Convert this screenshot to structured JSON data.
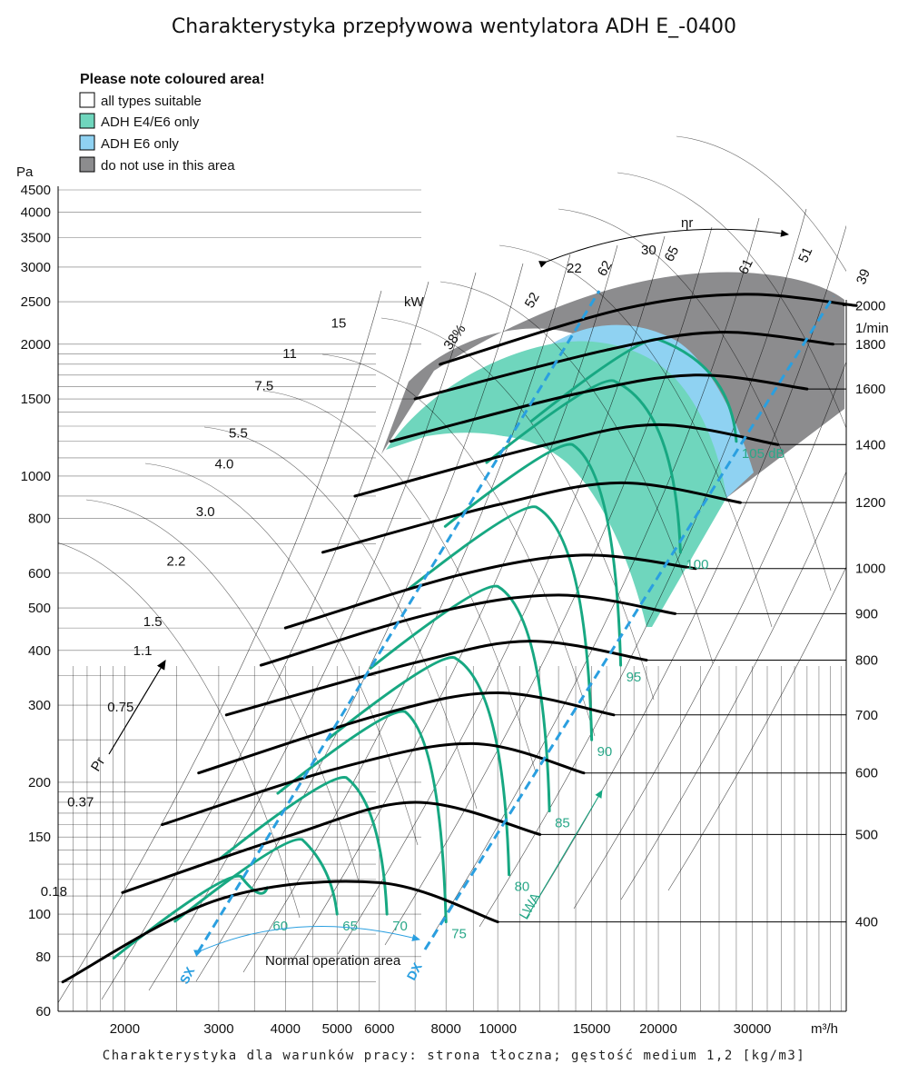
{
  "title": "Charakterystyka przepływowa wentylatora ADH E_-0400",
  "footer": "Charakterystyka dla warunków pracy: strona tłoczna; gęstość medium 1,2 [kg/m3]",
  "legend": {
    "title": "Please note coloured area!",
    "items": [
      {
        "label": "all types suitable",
        "color": "#ffffff"
      },
      {
        "label": "ADH E4/E6 only",
        "color": "#6fd6bd"
      },
      {
        "label": "ADH E6 only",
        "color": "#8fd2f2"
      },
      {
        "label": "do not use in this area",
        "color": "#8c8c8e"
      }
    ]
  },
  "chart_data": {
    "type": "line",
    "x_axis": {
      "scale": "log",
      "unit": "m³/h",
      "range": [
        1500,
        45000
      ],
      "tick_labels": [
        2000,
        3000,
        4000,
        5000,
        6000,
        8000,
        10000,
        15000,
        20000,
        30000
      ]
    },
    "y_axis": {
      "scale": "log",
      "unit": "Pa",
      "range": [
        60,
        5000
      ],
      "tick_labels": [
        60,
        80,
        100,
        150,
        200,
        300,
        400,
        500,
        600,
        800,
        1000,
        1500,
        2000,
        2500,
        3000,
        3500,
        4000,
        4500
      ]
    },
    "speed_unit": "1/min",
    "speed_curves": [
      {
        "rpm": 400,
        "points": [
          [
            1530,
            70
          ],
          [
            3000,
            108
          ],
          [
            6000,
            118
          ],
          [
            10000,
            96
          ]
        ]
      },
      {
        "rpm": 500,
        "points": [
          [
            1980,
            112
          ],
          [
            4000,
            150
          ],
          [
            7000,
            180
          ],
          [
            12000,
            152
          ]
        ]
      },
      {
        "rpm": 600,
        "points": [
          [
            2350,
            160
          ],
          [
            5000,
            215
          ],
          [
            9000,
            245
          ],
          [
            14500,
            210
          ]
        ]
      },
      {
        "rpm": 700,
        "points": [
          [
            2750,
            210
          ],
          [
            6000,
            285
          ],
          [
            10000,
            320
          ],
          [
            16500,
            285
          ]
        ]
      },
      {
        "rpm": 800,
        "points": [
          [
            3100,
            285
          ],
          [
            7000,
            375
          ],
          [
            11500,
            420
          ],
          [
            19000,
            380
          ]
        ]
      },
      {
        "rpm": 900,
        "points": [
          [
            3600,
            370
          ],
          [
            7500,
            485
          ],
          [
            13000,
            535
          ],
          [
            21500,
            485
          ]
        ]
      },
      {
        "rpm": 1000,
        "points": [
          [
            4000,
            450
          ],
          [
            8500,
            595
          ],
          [
            14500,
            660
          ],
          [
            23500,
            615
          ]
        ]
      },
      {
        "rpm": 1200,
        "points": [
          [
            4700,
            670
          ],
          [
            10000,
            860
          ],
          [
            17000,
            965
          ],
          [
            28500,
            870
          ]
        ]
      },
      {
        "rpm": 1400,
        "points": [
          [
            5400,
            900
          ],
          [
            12000,
            1170
          ],
          [
            20000,
            1310
          ],
          [
            33500,
            1180
          ]
        ]
      },
      {
        "rpm": 1600,
        "points": [
          [
            6300,
            1200
          ],
          [
            14000,
            1540
          ],
          [
            23500,
            1700
          ],
          [
            38000,
            1580
          ]
        ]
      },
      {
        "rpm": 1800,
        "points": [
          [
            7000,
            1500
          ],
          [
            16000,
            1940
          ],
          [
            26000,
            2130
          ],
          [
            42500,
            2000
          ]
        ]
      },
      {
        "rpm": 2000,
        "points": [
          [
            7800,
            1800
          ],
          [
            17000,
            2400
          ],
          [
            29000,
            2600
          ],
          [
            47000,
            2450
          ]
        ]
      }
    ],
    "noise_unit": "dB",
    "noise_levels": [
      {
        "label": "60",
        "x": 3700,
        "y": 100
      },
      {
        "label": "65",
        "x": 5000,
        "y": 100
      },
      {
        "label": "70",
        "x": 6200,
        "y": 100
      },
      {
        "label": "75",
        "x": 8000,
        "y": 96
      },
      {
        "label": "80",
        "x": 10500,
        "y": 123
      },
      {
        "label": "85",
        "x": 12500,
        "y": 172
      },
      {
        "label": "90",
        "x": 15000,
        "y": 250
      },
      {
        "label": "95",
        "x": 17000,
        "y": 370
      },
      {
        "label": "100",
        "x": 22000,
        "y": 670
      },
      {
        "label": "105 dB",
        "x": 28000,
        "y": 1200
      }
    ],
    "power_unit": "kW",
    "power_labels": [
      {
        "label": "0.18",
        "x": 1560,
        "y": 110
      },
      {
        "label": "0.37",
        "x": 1750,
        "y": 176
      },
      {
        "label": "0.75",
        "x": 2080,
        "y": 290
      },
      {
        "label": "1.1",
        "x": 2250,
        "y": 390
      },
      {
        "label": "1.5",
        "x": 2350,
        "y": 455
      },
      {
        "label": "2.2",
        "x": 2600,
        "y": 625
      },
      {
        "label": "3.0",
        "x": 2950,
        "y": 810
      },
      {
        "label": "4.0",
        "x": 3200,
        "y": 1040
      },
      {
        "label": "5.5",
        "x": 3400,
        "y": 1225
      },
      {
        "label": "7.5",
        "x": 3800,
        "y": 1570
      },
      {
        "label": "11",
        "x": 4200,
        "y": 1860
      },
      {
        "label": "15",
        "x": 5200,
        "y": 2180
      },
      {
        "label": "kW",
        "x": 4400,
        "y": 2550
      }
    ],
    "efficiency_symbol": "ηr",
    "efficiency_labels": [
      "38%",
      "52",
      "22",
      "62",
      "30",
      "65",
      "61",
      "51",
      "39"
    ],
    "markers": {
      "sx": "SX",
      "dx": "DX",
      "normal_operation": "Normal operation area",
      "lwa": "LWA",
      "pressure_axis": "Pr"
    }
  }
}
